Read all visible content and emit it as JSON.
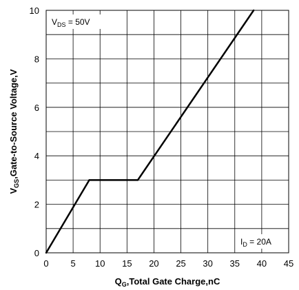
{
  "chart_data": {
    "type": "line",
    "xlabel": {
      "main": "Q",
      "sub": "G",
      "rest": ",Total Gate Charge,nC"
    },
    "ylabel": {
      "main": "V",
      "sub": "GS",
      "rest": ",Gate-to-Source Voltage,V"
    },
    "xlim": [
      0,
      45
    ],
    "ylim": [
      0,
      10
    ],
    "xticks": [
      "0",
      "5",
      "10",
      "15",
      "20",
      "25",
      "30",
      "35",
      "40",
      "45"
    ],
    "yticks": [
      "0",
      "2",
      "4",
      "6",
      "8",
      "10"
    ],
    "grid": true,
    "series": [
      {
        "x": [
          0,
          8,
          17,
          38.5
        ],
        "y": [
          0,
          3,
          3,
          10
        ]
      }
    ],
    "annotations": [
      {
        "main": "V",
        "sub": "DS",
        "rest": " = 50V",
        "placement": "top-left"
      },
      {
        "main": "I",
        "sub": "D",
        "rest": " = 20A",
        "placement": "bottom-right"
      }
    ],
    "line_color": "#000000",
    "grid_color": "#000000"
  }
}
